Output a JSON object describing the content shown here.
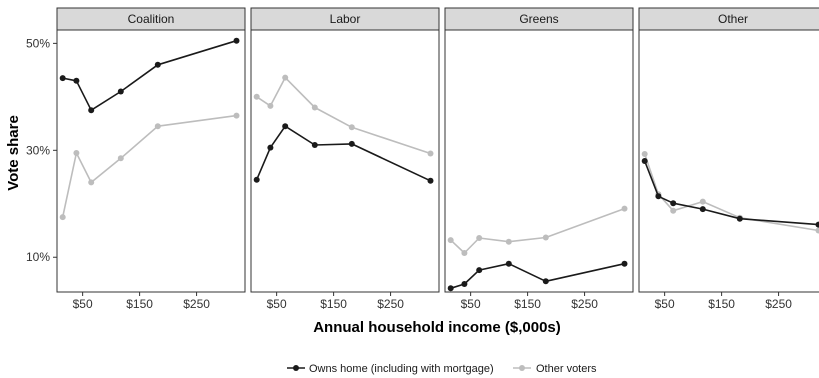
{
  "chart_data": {
    "type": "line",
    "xlabel": "Annual household income ($,000s)",
    "ylabel": "Vote share",
    "x_ticks": [
      {
        "value": 50,
        "label": "$50"
      },
      {
        "value": 150,
        "label": "$150"
      },
      {
        "value": 250,
        "label": "$250"
      }
    ],
    "y_ticks": [
      {
        "value": 10,
        "label": "10%"
      },
      {
        "value": 30,
        "label": "30%"
      },
      {
        "value": 50,
        "label": "50%"
      }
    ],
    "xlim": [
      5,
      335
    ],
    "ylim": [
      3.5,
      52.5
    ],
    "x": [
      15,
      39,
      65,
      117,
      182,
      320
    ],
    "legend_position": "bottom",
    "grid": false,
    "series_styles": [
      {
        "color": "#1a1a1a"
      },
      {
        "color": "#bdbdbd"
      }
    ],
    "legend": [
      "Owns home (including with mortgage)",
      "Other voters"
    ],
    "panels": [
      {
        "name": "Coalition",
        "series": [
          {
            "name": "Owns home (including with mortgage)",
            "values": [
              43.5,
              43,
              37.5,
              41,
              46,
              50.5
            ]
          },
          {
            "name": "Other voters",
            "values": [
              17.5,
              29.5,
              24,
              28.5,
              34.5,
              36.5
            ]
          }
        ]
      },
      {
        "name": "Labor",
        "series": [
          {
            "name": "Owns home (including with mortgage)",
            "values": [
              24.5,
              30.5,
              34.5,
              31,
              31.2,
              24.3
            ]
          },
          {
            "name": "Other voters",
            "values": [
              40,
              38.3,
              43.6,
              38,
              34.3,
              29.4
            ]
          }
        ]
      },
      {
        "name": "Greens",
        "series": [
          {
            "name": "Owns home (including with mortgage)",
            "values": [
              4.2,
              5,
              7.6,
              8.8,
              5.5,
              8.8
            ]
          },
          {
            "name": "Other voters",
            "values": [
              13.2,
              10.8,
              13.6,
              12.9,
              13.7,
              19.1
            ]
          }
        ]
      },
      {
        "name": "Other",
        "series": [
          {
            "name": "Owns home (including with mortgage)",
            "values": [
              28,
              21.4,
              20.1,
              19,
              17.2,
              16.1
            ]
          },
          {
            "name": "Other voters",
            "values": [
              29.3,
              21.8,
              18.7,
              20.4,
              17.4,
              15
            ]
          }
        ]
      }
    ]
  }
}
